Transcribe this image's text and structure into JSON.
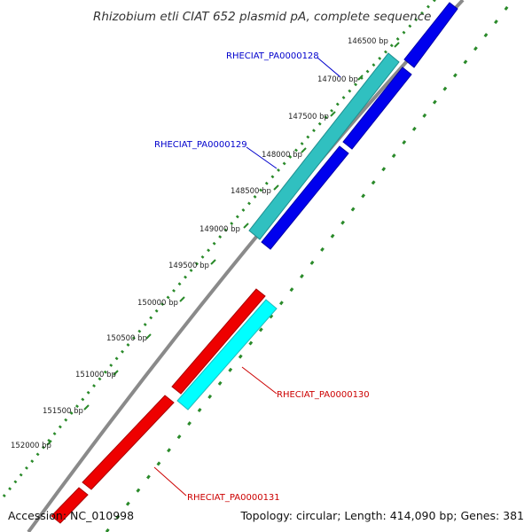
{
  "title": "Rhizobium etli CIAT 652 plasmid pA, complete sequence",
  "footer": {
    "accession": "Accession: NC_010998",
    "summary": "Topology: circular; Length: 414,090 bp; Genes: 381"
  },
  "scale_ticks": [
    "146500 bp",
    "147000 bp",
    "147500 bp",
    "148000 bp",
    "148500 bp",
    "149000 bp",
    "149500 bp",
    "150000 bp",
    "150500 bp",
    "151000 bp",
    "151500 bp",
    "152000 bp"
  ],
  "genes": [
    {
      "name": "RHECIAT_PA0000128",
      "color": "#0000cc"
    },
    {
      "name": "RHECIAT_PA0000129",
      "color": "#0000cc"
    },
    {
      "name": "RHECIAT_PA0000130",
      "color": "#cc0000"
    },
    {
      "name": "RHECIAT_PA0000131",
      "color": "#cc0000"
    }
  ],
  "colors": {
    "backbone": "#8a8a8a",
    "forward_cds": "#0000ee",
    "reverse_cds": "#ee0000",
    "feature_teal": "#30c0c0",
    "feature_cyan": "#00ffff",
    "dotted_track": "#2a8a2a"
  }
}
